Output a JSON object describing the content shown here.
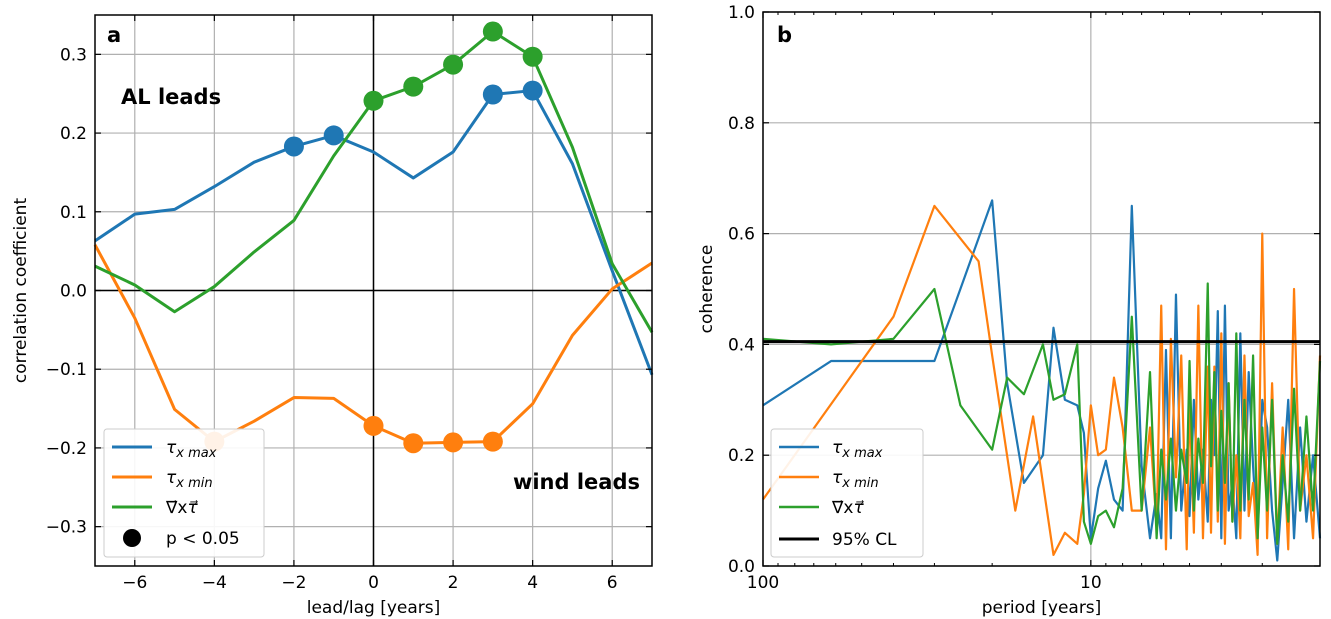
{
  "chart_data": [
    {
      "type": "line",
      "panel_label": "a",
      "xlabel": "lead/lag [years]",
      "ylabel": "correlation coefficient",
      "xlim": [
        -7,
        7
      ],
      "ylim": [
        -0.35,
        0.35
      ],
      "xticks": [
        -6,
        -4,
        -2,
        0,
        2,
        4,
        6
      ],
      "xtick_labels": [
        "−6",
        "−4",
        "−2",
        "0",
        "2",
        "4",
        "6"
      ],
      "yticks": [
        -0.3,
        -0.2,
        -0.1,
        0.0,
        0.1,
        0.2,
        0.3
      ],
      "ytick_labels": [
        "−0.3",
        "−0.2",
        "−0.1",
        "0.0",
        "0.1",
        "0.2",
        "0.3"
      ],
      "grid": true,
      "legend_position": "lower-left",
      "annotations": [
        "AL leads",
        "wind leads"
      ],
      "x": [
        -7,
        -6,
        -5,
        -4,
        -3,
        -2,
        -1,
        0,
        1,
        2,
        3,
        4,
        5,
        6,
        7
      ],
      "series": [
        {
          "base": "τ",
          "sub": "x max",
          "color": "#1f77b4",
          "values": [
            0.063,
            0.097,
            0.103,
            0.132,
            0.163,
            0.183,
            0.197,
            0.176,
            0.143,
            0.176,
            0.249,
            0.254,
            0.161,
            0.025,
            -0.107
          ],
          "significant_x": [
            -2,
            -1,
            3,
            4
          ]
        },
        {
          "base": "τ",
          "sub": "x min",
          "color": "#ff7f0e",
          "values": [
            0.058,
            -0.035,
            -0.151,
            -0.192,
            -0.166,
            -0.136,
            -0.137,
            -0.172,
            -0.194,
            -0.193,
            -0.192,
            -0.144,
            -0.057,
            0.002,
            0.035
          ],
          "significant_x": [
            -4,
            0,
            1,
            2,
            3
          ]
        },
        {
          "base": "∇⃗x",
          "mid": "τ",
          "tail": "⃗",
          "color": "#2ca02c",
          "values": [
            0.031,
            0.007,
            -0.027,
            0.005,
            0.049,
            0.089,
            0.171,
            0.241,
            0.259,
            0.287,
            0.329,
            0.297,
            0.182,
            0.034,
            -0.053
          ],
          "significant_x": [
            0,
            1,
            2,
            3,
            4
          ]
        }
      ],
      "marker_legend": "p < 0.05"
    },
    {
      "type": "line",
      "panel_label": "b",
      "xlabel": "period [years]",
      "ylabel": "coherence",
      "x_scale": "log-reversed",
      "xlim": [
        100,
        2
      ],
      "ylim": [
        0.0,
        1.0
      ],
      "xticks": [
        100,
        10
      ],
      "xtick_labels": [
        "100",
        "10"
      ],
      "yticks": [
        0.0,
        0.2,
        0.4,
        0.6,
        0.8,
        1.0
      ],
      "ytick_labels": [
        "0.0",
        "0.2",
        "0.4",
        "0.6",
        "0.8",
        "1.0"
      ],
      "grid": true,
      "legend_position": "lower-left",
      "confidence_level": {
        "label": "95% CL",
        "value": 0.405,
        "color": "#000000"
      },
      "series": [
        {
          "base": "τ",
          "sub": "x max",
          "color": "#1f77b4",
          "x": [
            100,
            62,
            40,
            30,
            25,
            20,
            18,
            16,
            14,
            13,
            12,
            11,
            10.5,
            10,
            9.5,
            9,
            8.5,
            8,
            7.5,
            7,
            6.6,
            6.3,
            6.1,
            5.9,
            5.7,
            5.5,
            5.3,
            5.1,
            5.0,
            4.85,
            4.7,
            4.55,
            4.4,
            4.3,
            4.2,
            4.1,
            4.0,
            3.9,
            3.8,
            3.7,
            3.6,
            3.5,
            3.4,
            3.3,
            3.2,
            3.1,
            3.0,
            2.9,
            2.8,
            2.7,
            2.6,
            2.5,
            2.4,
            2.3,
            2.2,
            2.1,
            2.0
          ],
          "values": [
            0.29,
            0.37,
            0.37,
            0.37,
            0.5,
            0.66,
            0.33,
            0.15,
            0.2,
            0.43,
            0.3,
            0.29,
            0.24,
            0.05,
            0.14,
            0.19,
            0.12,
            0.1,
            0.65,
            0.18,
            0.05,
            0.13,
            0.05,
            0.39,
            0.05,
            0.49,
            0.1,
            0.21,
            0.09,
            0.3,
            0.12,
            0.21,
            0.08,
            0.3,
            0.2,
            0.46,
            0.05,
            0.47,
            0.1,
            0.15,
            0.05,
            0.42,
            0.1,
            0.35,
            0.18,
            0.05,
            0.3,
            0.25,
            0.1,
            0.01,
            0.15,
            0.3,
            0.05,
            0.25,
            0.08,
            0.2,
            0.05
          ]
        },
        {
          "base": "τ",
          "sub": "x min",
          "color": "#ff7f0e",
          "x": [
            100,
            40,
            30,
            22,
            20,
            17,
            15,
            13,
            12,
            11,
            10.5,
            10,
            9.5,
            9,
            8.5,
            8,
            7.5,
            7,
            6.6,
            6.3,
            6.1,
            5.9,
            5.7,
            5.5,
            5.3,
            5.1,
            5.0,
            4.85,
            4.7,
            4.55,
            4.4,
            4.3,
            4.2,
            4.1,
            4.0,
            3.9,
            3.8,
            3.7,
            3.6,
            3.5,
            3.4,
            3.3,
            3.2,
            3.1,
            3.0,
            2.9,
            2.8,
            2.7,
            2.6,
            2.5,
            2.4,
            2.3,
            2.2,
            2.1,
            2.0
          ],
          "values": [
            0.12,
            0.45,
            0.65,
            0.55,
            0.38,
            0.1,
            0.27,
            0.02,
            0.06,
            0.04,
            0.13,
            0.29,
            0.2,
            0.21,
            0.34,
            0.25,
            0.1,
            0.1,
            0.25,
            0.07,
            0.47,
            0.03,
            0.41,
            0.16,
            0.38,
            0.03,
            0.3,
            0.06,
            0.47,
            0.05,
            0.36,
            0.06,
            0.36,
            0.08,
            0.42,
            0.04,
            0.33,
            0.08,
            0.2,
            0.05,
            0.38,
            0.09,
            0.15,
            0.02,
            0.6,
            0.05,
            0.33,
            0.04,
            0.25,
            0.03,
            0.5,
            0.1,
            0.2,
            0.05,
            0.38
          ]
        },
        {
          "base": "∇⃗x",
          "mid": "τ",
          "tail": "⃗",
          "color": "#2ca02c",
          "x": [
            100,
            62,
            40,
            30,
            25,
            20,
            18,
            16,
            14,
            13,
            12,
            11,
            10.5,
            10,
            9.5,
            9,
            8.5,
            8,
            7.5,
            7,
            6.6,
            6.3,
            6.1,
            5.9,
            5.7,
            5.5,
            5.3,
            5.1,
            5.0,
            4.85,
            4.7,
            4.55,
            4.4,
            4.3,
            4.2,
            4.1,
            4.0,
            3.9,
            3.8,
            3.7,
            3.6,
            3.5,
            3.4,
            3.3,
            3.2,
            3.1,
            3.0,
            2.9,
            2.8,
            2.7,
            2.6,
            2.5,
            2.4,
            2.3,
            2.2,
            2.1,
            2.0
          ],
          "values": [
            0.41,
            0.4,
            0.41,
            0.5,
            0.29,
            0.21,
            0.34,
            0.31,
            0.4,
            0.3,
            0.31,
            0.4,
            0.08,
            0.04,
            0.09,
            0.1,
            0.07,
            0.14,
            0.45,
            0.1,
            0.35,
            0.05,
            0.21,
            0.12,
            0.23,
            0.1,
            0.21,
            0.15,
            0.37,
            0.1,
            0.23,
            0.15,
            0.51,
            0.18,
            0.35,
            0.1,
            0.28,
            0.15,
            0.33,
            0.08,
            0.42,
            0.1,
            0.3,
            0.12,
            0.38,
            0.05,
            0.25,
            0.1,
            0.3,
            0.04,
            0.2,
            0.08,
            0.32,
            0.1,
            0.27,
            0.1,
            0.37
          ]
        }
      ]
    }
  ]
}
